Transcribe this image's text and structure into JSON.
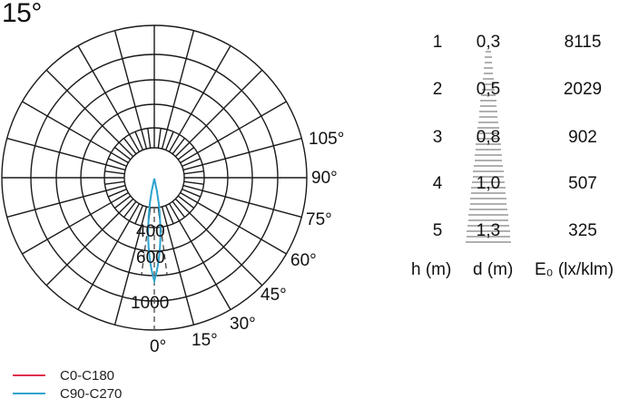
{
  "title": "15°",
  "chart_data": {
    "type": "polar",
    "title": "15°",
    "description": "Luminous intensity distribution (polar candela diagram) and illuminance cone table",
    "radial_tick_labels": [
      "400",
      "600",
      "1000"
    ],
    "angle_tick_labels": [
      "0°",
      "15°",
      "30°",
      "45°",
      "60°",
      "75°",
      "90°",
      "105°"
    ],
    "angle_step_deg": 15,
    "legend": [
      {
        "name": "C0-C180",
        "color": "#e0304a"
      },
      {
        "name": "C90-C270",
        "color": "#2fa3cf"
      }
    ],
    "series": [
      {
        "name": "C90-C270",
        "beam_angle_deg": 15,
        "peak_intensity_approx": 900,
        "shape": "narrow lobe pointing down (0°)"
      }
    ],
    "table": {
      "columns": [
        "h (m)",
        "d (m)",
        "E₀ (lx/klm)"
      ],
      "rows": [
        {
          "h": "1",
          "d": "0,3",
          "E0": "8115"
        },
        {
          "h": "2",
          "d": "0,5",
          "E0": "2029"
        },
        {
          "h": "3",
          "d": "0,8",
          "E0": "902"
        },
        {
          "h": "4",
          "d": "1,0",
          "E0": "507"
        },
        {
          "h": "5",
          "d": "1,3",
          "E0": "325"
        }
      ]
    }
  },
  "polar": {
    "radial_labels": [
      "400",
      "600",
      "1000"
    ],
    "angle_labels": [
      {
        "text": "0°"
      },
      {
        "text": "15°"
      },
      {
        "text": "30°"
      },
      {
        "text": "45°"
      },
      {
        "text": "60°"
      },
      {
        "text": "75°"
      },
      {
        "text": "90°"
      },
      {
        "text": "105°"
      }
    ]
  },
  "legend": {
    "items": [
      {
        "label": "C0-C180",
        "color": "#e0304a"
      },
      {
        "label": "C90-C270",
        "color": "#2fa3cf"
      }
    ]
  },
  "table": {
    "headers": {
      "h": "h (m)",
      "d": "d (m)",
      "e": "E₀ (lx/klm)"
    },
    "rows": [
      {
        "h": "1",
        "d": "0,3",
        "e": "8115"
      },
      {
        "h": "2",
        "d": "0,5",
        "e": "2029"
      },
      {
        "h": "3",
        "d": "0,8",
        "e": "902"
      },
      {
        "h": "4",
        "d": "1,0",
        "e": "507"
      },
      {
        "h": "5",
        "d": "1,3",
        "e": "325"
      }
    ]
  }
}
